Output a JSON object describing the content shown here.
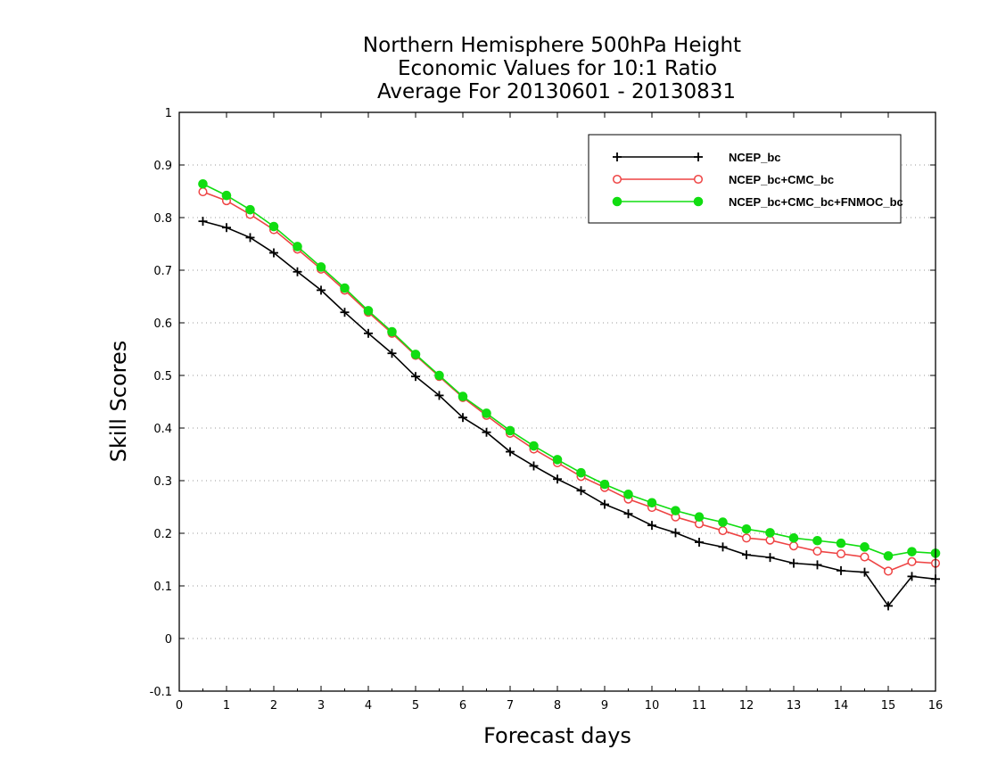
{
  "chart_data": {
    "type": "line",
    "title_lines": [
      "Northern Hemisphere 500hPa Height",
      "Economic Values for 10:1 Ratio",
      "Average For 20130601 - 20130831"
    ],
    "xlabel": "Forecast days",
    "ylabel": "Skill Scores",
    "xlim": [
      0,
      16
    ],
    "ylim": [
      -0.1,
      1
    ],
    "xticks": [
      "0",
      "1",
      "2",
      "3",
      "4",
      "5",
      "6",
      "7",
      "8",
      "9",
      "10",
      "11",
      "12",
      "13",
      "14",
      "15",
      "16"
    ],
    "yticks": [
      "-0.1",
      "0",
      "0.1",
      "0.2",
      "0.3",
      "0.4",
      "0.5",
      "0.6",
      "0.7",
      "0.8",
      "0.9",
      "1"
    ],
    "grid": true,
    "legend_position": "top-right",
    "x": [
      0.5,
      1,
      1.5,
      2,
      2.5,
      3,
      3.5,
      4,
      4.5,
      5,
      5.5,
      6,
      6.5,
      7,
      7.5,
      8,
      8.5,
      9,
      9.5,
      10,
      10.5,
      11,
      11.5,
      12,
      12.5,
      13,
      13.5,
      14,
      14.5,
      15,
      15.5,
      16
    ],
    "series": [
      {
        "name": "NCEP_bc",
        "color": "#000000",
        "marker": "plus",
        "values": [
          0.793,
          0.781,
          0.762,
          0.733,
          0.697,
          0.662,
          0.62,
          0.58,
          0.542,
          0.498,
          0.462,
          0.42,
          0.392,
          0.355,
          0.328,
          0.303,
          0.281,
          0.255,
          0.237,
          0.215,
          0.201,
          0.183,
          0.174,
          0.159,
          0.154,
          0.143,
          0.14,
          0.129,
          0.126,
          0.062,
          0.118,
          0.113
        ]
      },
      {
        "name": "NCEP_bc+CMC_bc",
        "color": "#ee4444",
        "marker": "open-circle",
        "values": [
          0.849,
          0.832,
          0.806,
          0.777,
          0.74,
          0.702,
          0.662,
          0.62,
          0.58,
          0.538,
          0.498,
          0.458,
          0.424,
          0.39,
          0.36,
          0.334,
          0.308,
          0.287,
          0.265,
          0.249,
          0.231,
          0.218,
          0.205,
          0.191,
          0.187,
          0.176,
          0.166,
          0.161,
          0.155,
          0.128,
          0.146,
          0.143
        ]
      },
      {
        "name": "NCEP_bc+CMC_bc+FNMOC_bc",
        "color": "#11dd11",
        "marker": "filled-circle",
        "values": [
          0.864,
          0.842,
          0.815,
          0.783,
          0.745,
          0.706,
          0.666,
          0.623,
          0.583,
          0.54,
          0.5,
          0.46,
          0.428,
          0.395,
          0.366,
          0.34,
          0.315,
          0.293,
          0.274,
          0.258,
          0.243,
          0.231,
          0.221,
          0.208,
          0.201,
          0.191,
          0.186,
          0.181,
          0.174,
          0.157,
          0.165,
          0.162
        ]
      }
    ]
  }
}
